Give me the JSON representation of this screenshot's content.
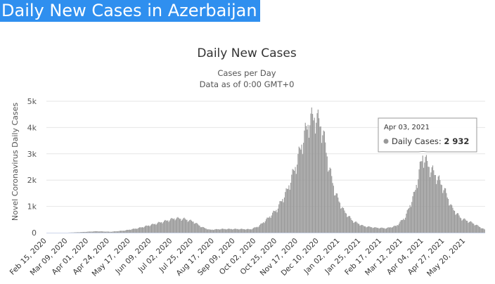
{
  "page": {
    "heading": "Daily New Cases in Azerbaijan"
  },
  "chart_data": {
    "type": "bar",
    "title": "Daily New Cases",
    "subtitle_lines": [
      "Cases per Day",
      "Data as of 0:00 GMT+0"
    ],
    "ylabel": "Novel Coronavirus Daily Cases",
    "xlabel": "",
    "ylim": [
      0,
      5000
    ],
    "y_ticks": [
      0,
      1000,
      2000,
      3000,
      4000,
      5000
    ],
    "y_tick_labels": [
      "0",
      "1k",
      "2k",
      "3k",
      "4k",
      "5k"
    ],
    "x_tick_labels": [
      "Feb 15, 2020",
      "Mar 09, 2020",
      "Apr 01, 2020",
      "Apr 24, 2020",
      "May 17, 2020",
      "Jun 09, 2020",
      "Jul 02, 2020",
      "Jul 25, 2020",
      "Aug 17, 2020",
      "Sep 09, 2020",
      "Oct 02, 2020",
      "Oct 25, 2020",
      "Nov 17, 2020",
      "Dec 10, 2020",
      "Jan 02, 2021",
      "Jan 25, 2021",
      "Feb 17, 2021",
      "Mar 12, 2021",
      "Apr 04, 2021",
      "Apr 27, 2021",
      "May 20, 2021"
    ],
    "start_date": "2020-02-15",
    "end_date": "2021-06-10",
    "grid": true,
    "legend": "none",
    "bar_color": "#999999",
    "series": [
      {
        "name": "Daily Cases",
        "profile": [
          [
            "2020-02-15",
            0
          ],
          [
            "2020-03-09",
            1
          ],
          [
            "2020-03-25",
            25
          ],
          [
            "2020-04-10",
            55
          ],
          [
            "2020-04-25",
            35
          ],
          [
            "2020-05-10",
            80
          ],
          [
            "2020-05-25",
            170
          ],
          [
            "2020-06-10",
            310
          ],
          [
            "2020-06-25",
            450
          ],
          [
            "2020-07-05",
            550
          ],
          [
            "2020-07-15",
            520
          ],
          [
            "2020-07-25",
            420
          ],
          [
            "2020-08-03",
            220
          ],
          [
            "2020-08-12",
            110
          ],
          [
            "2020-08-25",
            140
          ],
          [
            "2020-09-12",
            140
          ],
          [
            "2020-09-26",
            130
          ],
          [
            "2020-10-05",
            250
          ],
          [
            "2020-10-15",
            550
          ],
          [
            "2020-10-25",
            900
          ],
          [
            "2020-11-05",
            1600
          ],
          [
            "2020-11-15",
            2600
          ],
          [
            "2020-11-23",
            3600
          ],
          [
            "2020-11-30",
            4300
          ],
          [
            "2020-12-07",
            4400
          ],
          [
            "2020-12-14",
            3900
          ],
          [
            "2020-12-21",
            2500
          ],
          [
            "2020-12-28",
            1500
          ],
          [
            "2021-01-06",
            850
          ],
          [
            "2021-01-16",
            450
          ],
          [
            "2021-01-28",
            250
          ],
          [
            "2021-02-10",
            190
          ],
          [
            "2021-02-22",
            170
          ],
          [
            "2021-03-05",
            260
          ],
          [
            "2021-03-15",
            600
          ],
          [
            "2021-03-25",
            1500
          ],
          [
            "2021-04-03",
            2932
          ],
          [
            "2021-04-10",
            2500
          ],
          [
            "2021-04-18",
            2150
          ],
          [
            "2021-04-26",
            1700
          ],
          [
            "2021-05-05",
            950
          ],
          [
            "2021-05-15",
            550
          ],
          [
            "2021-05-27",
            380
          ],
          [
            "2021-06-10",
            120
          ]
        ]
      }
    ],
    "tooltip": {
      "date": "Apr 03, 2021",
      "label": "Daily Cases:",
      "value": "2 932",
      "marker_color": "#999999"
    }
  }
}
